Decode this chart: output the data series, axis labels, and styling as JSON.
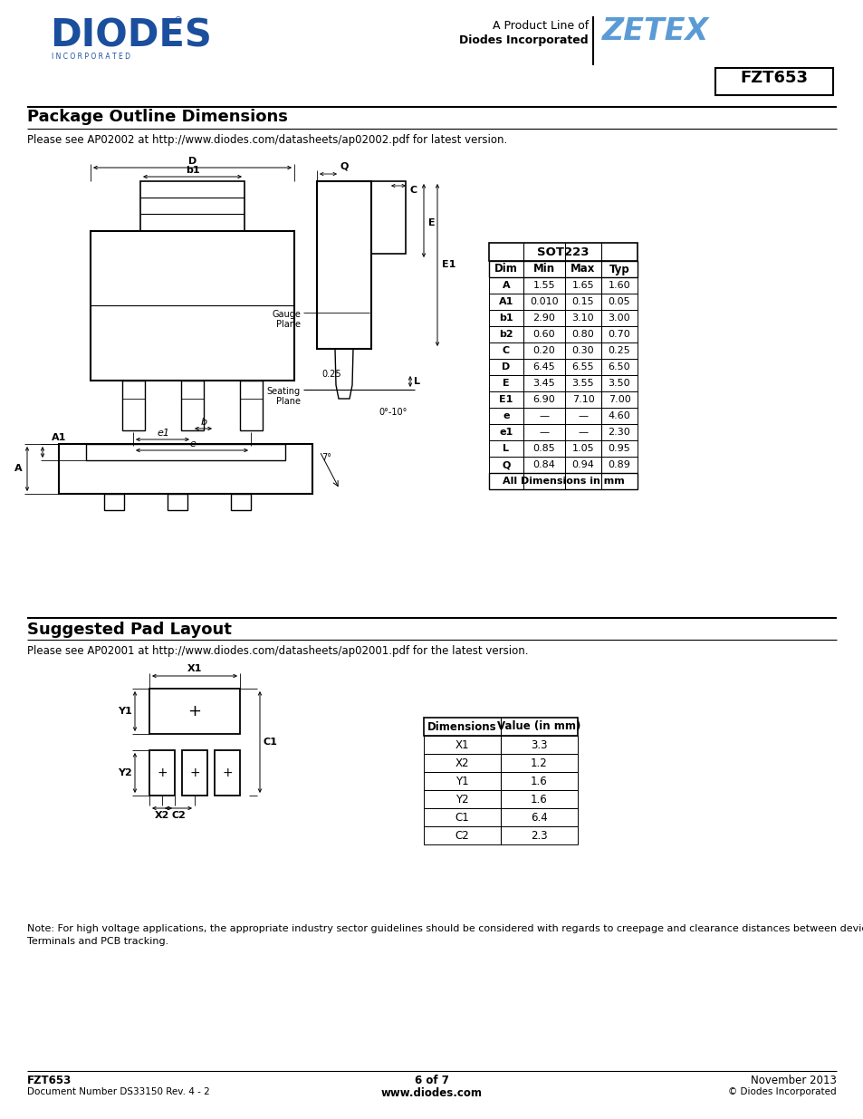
{
  "title_part": "FZT653",
  "header_text1": "A Product Line of",
  "header_text2": "Diodes Incorporated",
  "section1_title": "Package Outline Dimensions",
  "section1_note": "Please see AP02002 at http://www.diodes.com/datasheets/ap02002.pdf for latest version.",
  "sot223_title": "SOT223",
  "sot223_headers": [
    "Dim",
    "Min",
    "Max",
    "Typ"
  ],
  "sot223_rows": [
    [
      "A",
      "1.55",
      "1.65",
      "1.60"
    ],
    [
      "A1",
      "0.010",
      "0.15",
      "0.05"
    ],
    [
      "b1",
      "2.90",
      "3.10",
      "3.00"
    ],
    [
      "b2",
      "0.60",
      "0.80",
      "0.70"
    ],
    [
      "C",
      "0.20",
      "0.30",
      "0.25"
    ],
    [
      "D",
      "6.45",
      "6.55",
      "6.50"
    ],
    [
      "E",
      "3.45",
      "3.55",
      "3.50"
    ],
    [
      "E1",
      "6.90",
      "7.10",
      "7.00"
    ],
    [
      "e",
      "—",
      "—",
      "4.60"
    ],
    [
      "e1",
      "—",
      "—",
      "2.30"
    ],
    [
      "L",
      "0.85",
      "1.05",
      "0.95"
    ],
    [
      "Q",
      "0.84",
      "0.94",
      "0.89"
    ]
  ],
  "sot223_footer": "All Dimensions in mm",
  "section2_title": "Suggested Pad Layout",
  "section2_note": "Please see AP02001 at http://www.diodes.com/datasheets/ap02001.pdf for the latest version.",
  "pad_headers": [
    "Dimensions",
    "Value (in mm)"
  ],
  "pad_rows": [
    [
      "X1",
      "3.3"
    ],
    [
      "X2",
      "1.2"
    ],
    [
      "Y1",
      "1.6"
    ],
    [
      "Y2",
      "1.6"
    ],
    [
      "C1",
      "6.4"
    ],
    [
      "C2",
      "2.3"
    ]
  ],
  "footer_left1": "FZT653",
  "footer_left2": "Document Number DS33150 Rev. 4 - 2",
  "footer_center": "www.diodes.com",
  "footer_page": "6 of 7",
  "footer_right": "November 2013",
  "footer_right2": "© Diodes Incorporated",
  "note_text": "Note: For high voltage applications, the appropriate industry sector guidelines should be considered with regards to creepage and clearance distances between device\nTerminals and PCB tracking.",
  "diodes_blue": "#1B4F9E",
  "zetex_blue": "#5B9BD5"
}
